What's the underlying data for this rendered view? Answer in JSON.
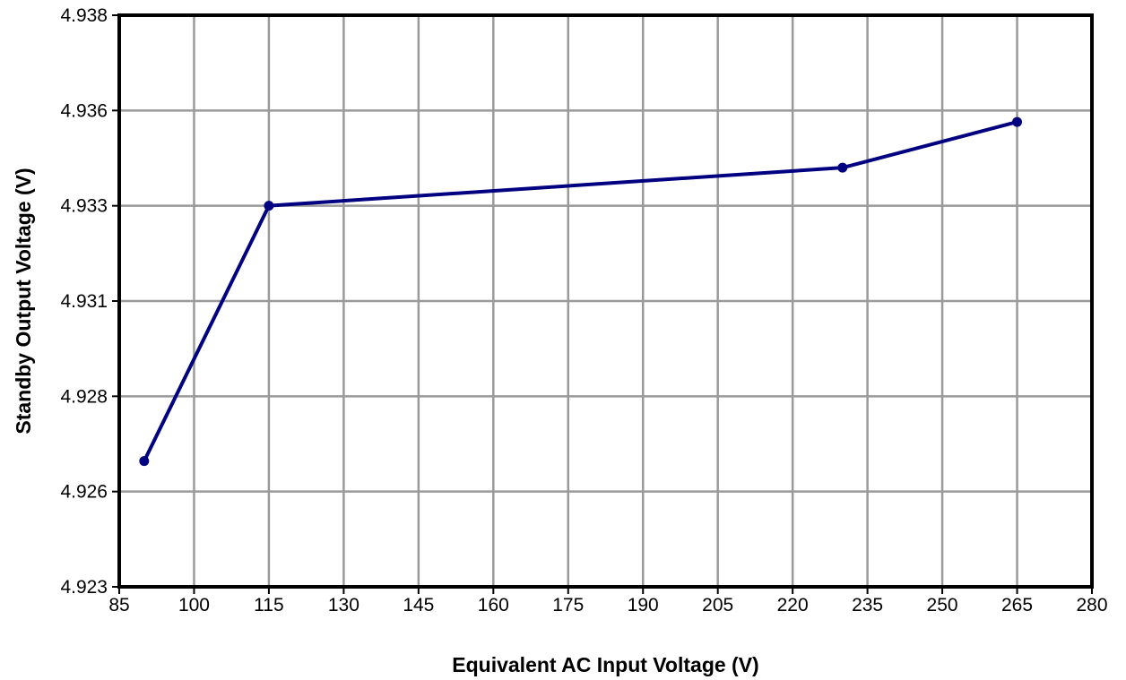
{
  "chart_data": {
    "type": "line",
    "title": "",
    "xlabel": "Equivalent AC Input Voltage (V)",
    "ylabel": "Standby Output Voltage (V)",
    "xlim": [
      85,
      280
    ],
    "ylim": [
      4.923,
      4.938
    ],
    "x_ticks": [
      85,
      100,
      115,
      130,
      145,
      160,
      175,
      190,
      205,
      220,
      235,
      250,
      265,
      280
    ],
    "y_ticks": [
      4.923,
      4.926,
      4.928,
      4.931,
      4.933,
      4.936,
      4.938
    ],
    "y_tick_labels": [
      "4.923",
      "4.926",
      "4.928",
      "4.931",
      "4.933",
      "4.936",
      "4.938"
    ],
    "grid": true,
    "legend": "none",
    "series": [
      {
        "x": [
          90,
          115,
          230,
          265
        ],
        "y": [
          4.9263,
          4.933,
          4.934,
          4.9352
        ],
        "color": "#000080"
      }
    ]
  }
}
